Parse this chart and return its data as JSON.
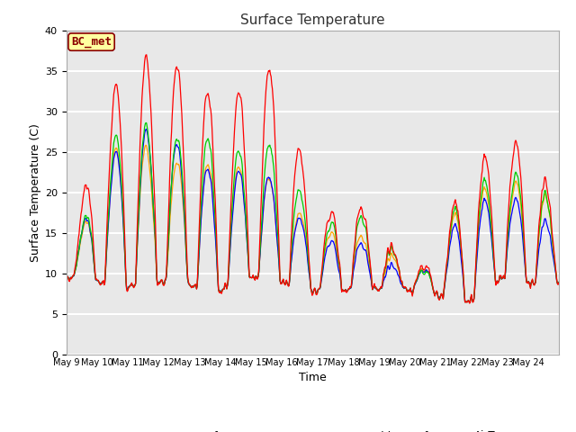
{
  "title": "Surface Temperature",
  "xlabel": "Time",
  "ylabel": "Surface Temperature (C)",
  "ylim": [
    0,
    40
  ],
  "yticks": [
    0,
    5,
    10,
    15,
    20,
    25,
    30,
    35,
    40
  ],
  "annotation": "BC_met",
  "annotation_color": "#8B0000",
  "annotation_bg": "#FFFFA0",
  "bg_color": "#E8E8E8",
  "grid_color": "white",
  "series_colors": {
    "NR01_Tsurf": "#FF0000",
    "NR01_PRT": "#0000FF",
    "Arable_Tsurf": "#00CC00",
    "AirT": "#FFA500"
  },
  "x_tick_labels": [
    "May 9",
    "May 10",
    "May 11",
    "May 12",
    "May 13",
    "May 14",
    "May 15",
    "May 16",
    "May 17",
    "May 18",
    "May 19",
    "May 20",
    "May 21",
    "May 22",
    "May 23",
    "May 24"
  ],
  "n_days": 16,
  "points_per_day": 48
}
